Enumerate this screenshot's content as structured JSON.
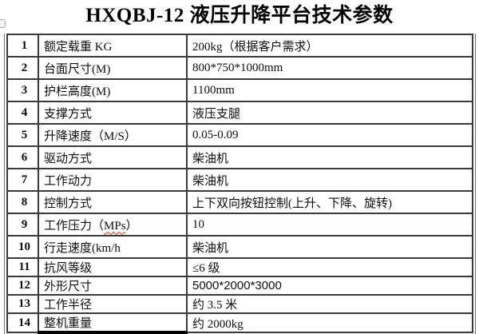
{
  "title": "HXQBJ-12 液压升降平台技术参数",
  "colors": {
    "row_number": "#1c2d6b",
    "border": "#3a3a3a",
    "squiggle_underline": "#e03020",
    "background": "#ffffff",
    "text": "#0d0d0d"
  },
  "table": {
    "rows": [
      {
        "num": "1",
        "label": "额定载重 KG",
        "value": "200kg（根据客户需求）"
      },
      {
        "num": "2",
        "label": "台面尺寸(M)",
        "value": "800*750*1000mm"
      },
      {
        "num": "3",
        "label": "护栏高度(M)",
        "value": "1100mm"
      },
      {
        "num": "4",
        "label": "支撑方式",
        "value": "液压支腿"
      },
      {
        "num": "5",
        "label": "升降速度（M/S）",
        "value": "0.05-0.09"
      },
      {
        "num": "6",
        "label": "驱动方式",
        "value": "柴油机"
      },
      {
        "num": "7",
        "label": "工作动力",
        "value": "柴油机"
      },
      {
        "num": "8",
        "label": "控制方式",
        "value": "上下双向按钮控制(上升、下降、旋转)"
      },
      {
        "num": "9",
        "label_pre": "工作压力（",
        "label_misspell": "MPs",
        "label_post": "）",
        "value": "10"
      },
      {
        "num": "10",
        "label": "行走速度(km/h",
        "value": "柴油机"
      },
      {
        "num": "11",
        "label": "抗风等级",
        "value": "≤6 级"
      },
      {
        "num": "12",
        "label": "外形尺寸",
        "value": "5000*2000*3000"
      },
      {
        "num": "13",
        "label": "工作半径",
        "value": "约 3.5 米"
      },
      {
        "num": "14",
        "label": "整机重量",
        "value": "约 2000kg"
      }
    ]
  }
}
